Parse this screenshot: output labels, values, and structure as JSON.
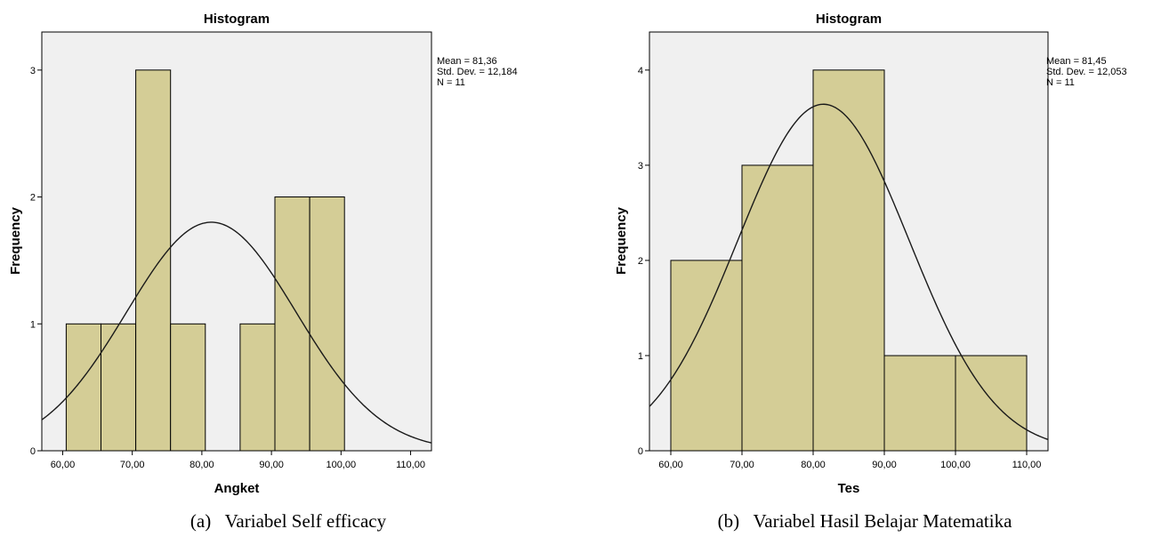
{
  "charts": [
    {
      "caption_prefix": "(a)",
      "caption_text": "Variabel Self efficacy",
      "stats": [
        "Mean = 81,36",
        "Std. Dev. = 12,184",
        "N = 11"
      ]
    },
    {
      "caption_prefix": "(b)",
      "caption_text": "Variabel Hasil Belajar Matematika",
      "stats": [
        "Mean = 81,45",
        "Std. Dev. = 12,053",
        "N = 11"
      ]
    }
  ],
  "colors": {
    "bar_fill": "#d4cd96",
    "bar_stroke": "#000000",
    "plot_bg": "#f0f0f0",
    "curve": "#1a1a1a"
  },
  "chart_data": [
    {
      "type": "bar",
      "title": "Histogram",
      "xlabel": "Angket",
      "ylabel": "Frequency",
      "bins": [
        {
          "from": 60.5,
          "to": 65.5,
          "count": 1
        },
        {
          "from": 65.5,
          "to": 70.5,
          "count": 1
        },
        {
          "from": 70.5,
          "to": 75.5,
          "count": 3
        },
        {
          "from": 75.5,
          "to": 80.5,
          "count": 1
        },
        {
          "from": 80.5,
          "to": 85.5,
          "count": 0
        },
        {
          "from": 85.5,
          "to": 90.5,
          "count": 1
        },
        {
          "from": 90.5,
          "to": 95.5,
          "count": 2
        },
        {
          "from": 95.5,
          "to": 100.5,
          "count": 2
        }
      ],
      "xlim": [
        57,
        113
      ],
      "ylim": [
        0,
        3.3
      ],
      "x_ticks": [
        60,
        70,
        80,
        90,
        100,
        110
      ],
      "x_tick_labels": [
        "60,00",
        "70,00",
        "80,00",
        "90,00",
        "100,00",
        "110,00"
      ],
      "y_ticks": [
        0,
        1,
        2,
        3
      ],
      "y_tick_labels": [
        "0",
        "1",
        "2",
        "3"
      ],
      "normal_curve": {
        "mean": 81.36,
        "sd": 12.184,
        "n": 11,
        "bin_width": 5
      },
      "grid": false,
      "legend": "none"
    },
    {
      "type": "bar",
      "title": "Histogram",
      "xlabel": "Tes",
      "ylabel": "Frequency",
      "bins": [
        {
          "from": 60,
          "to": 70,
          "count": 2
        },
        {
          "from": 70,
          "to": 80,
          "count": 3
        },
        {
          "from": 80,
          "to": 90,
          "count": 4
        },
        {
          "from": 90,
          "to": 100,
          "count": 1
        },
        {
          "from": 100,
          "to": 110,
          "count": 1
        }
      ],
      "xlim": [
        57,
        113
      ],
      "ylim": [
        0,
        4.4
      ],
      "x_ticks": [
        60,
        70,
        80,
        90,
        100,
        110
      ],
      "x_tick_labels": [
        "60,00",
        "70,00",
        "80,00",
        "90,00",
        "100,00",
        "110,00"
      ],
      "y_ticks": [
        0,
        1,
        2,
        3,
        4
      ],
      "y_tick_labels": [
        "0",
        "1",
        "2",
        "3",
        "4"
      ],
      "normal_curve": {
        "mean": 81.45,
        "sd": 12.053,
        "n": 11,
        "bin_width": 10
      },
      "grid": false,
      "legend": "none"
    }
  ]
}
